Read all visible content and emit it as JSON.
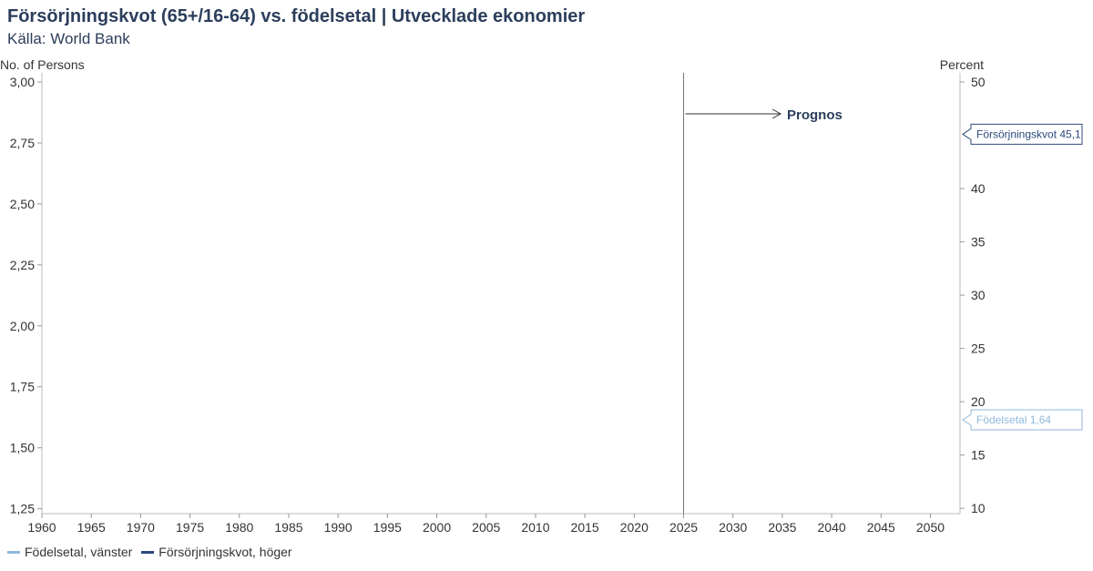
{
  "chart_data": {
    "type": "line",
    "title": "Försörjningskvot (65+/16-64) vs. födelsetal | Utvecklade ekonomier",
    "subtitle": "Källa: World Bank",
    "y_left_label": "No. of Persons",
    "y_right_label": "Percent",
    "x_ticks": [
      1960,
      1965,
      1970,
      1975,
      1980,
      1985,
      1990,
      1995,
      2000,
      2005,
      2010,
      2015,
      2020,
      2025,
      2030,
      2035,
      2040,
      2045,
      2050
    ],
    "y_left_ticks": [
      "3,00",
      "2,75",
      "2,50",
      "2,25",
      "2,00",
      "1,75",
      "1,50",
      "1,25"
    ],
    "y_left_tick_values": [
      3.0,
      2.75,
      2.5,
      2.25,
      2.0,
      1.75,
      1.5,
      1.25
    ],
    "y_right_ticks": [
      "50",
      "40",
      "35",
      "30",
      "25",
      "20",
      "15",
      "10"
    ],
    "y_right_tick_values": [
      50,
      40,
      35,
      30,
      25,
      20,
      15,
      10
    ],
    "xlim": [
      1960,
      2053
    ],
    "ylim_left": [
      1.23,
      3.0
    ],
    "ylim_right": [
      9.5,
      50
    ],
    "forecast_marker": {
      "x": 2025,
      "label": "Prognos"
    },
    "end_labels": [
      {
        "text": "Försörjningskvot 45,1",
        "value": 45.1,
        "axis": "right",
        "color": "#2c4a7c"
      },
      {
        "text": "Födelsetal 1,64",
        "value": 18.3,
        "axis": "right",
        "color": "#8fb8dc"
      }
    ],
    "series": [
      {
        "name": "Födelsetal, vänster",
        "color": "#8fb8dc",
        "axis": "left",
        "values": []
      },
      {
        "name": "Försörjningskvot, höger",
        "color": "#2c4a7c",
        "axis": "right",
        "values": []
      }
    ],
    "grid": false,
    "legend_position": "bottom-left"
  }
}
